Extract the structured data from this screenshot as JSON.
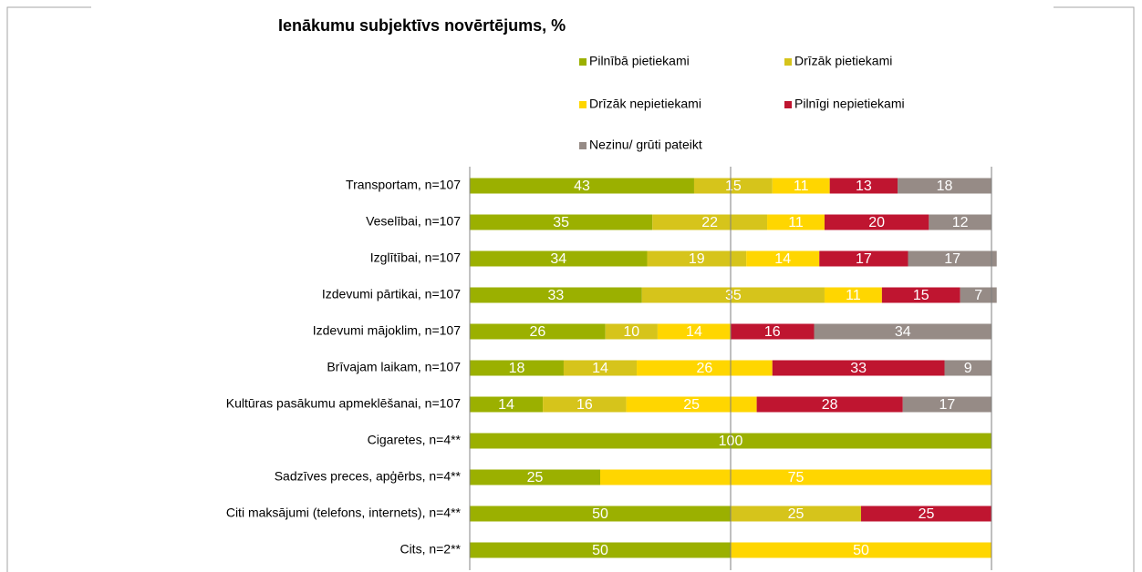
{
  "chart_data": {
    "type": "stacked_bar_horizontal",
    "title": "Ienākumu subjektīvs novērtējums, %",
    "categories": [
      "Transportam, n=107",
      "Veselībai, n=107",
      "Izglītībai, n=107",
      "Izdevumi pārtikai, n=107",
      "Izdevumi mājoklim, n=107",
      "Brīvajam laikam, n=107",
      "Kultūras pasākumu apmeklēšanai, n=107",
      "Cigaretes, n=4**",
      "Sadzīves preces, apģērbs, n=4**",
      "Citi maksājumi (telefons, internets), n=4**",
      "Cits, n=2**"
    ],
    "series": [
      {
        "name": "Pilnībā pietiekami",
        "color": "#9bb000",
        "values": [
          43,
          35,
          34,
          33,
          26,
          18,
          14,
          100,
          25,
          50,
          50
        ]
      },
      {
        "name": "Drīzāk pietiekami",
        "color": "#d6c41b",
        "values": [
          15,
          22,
          19,
          35,
          10,
          14,
          16,
          null,
          null,
          25,
          null
        ]
      },
      {
        "name": "Drīzāk nepietiekami",
        "color": "#ffd600",
        "values": [
          11,
          11,
          14,
          11,
          14,
          26,
          25,
          null,
          75,
          null,
          50
        ]
      },
      {
        "name": "Pilnīgi nepietiekami",
        "color": "#bf1530",
        "values": [
          13,
          20,
          17,
          15,
          16,
          33,
          28,
          null,
          null,
          25,
          null
        ]
      },
      {
        "name": "Nezinu/ grūti pateikt",
        "color": "#968b86",
        "values": [
          18,
          12,
          17,
          7,
          34,
          9,
          17,
          null,
          null,
          null,
          null
        ]
      }
    ],
    "xlim": [
      0,
      100
    ],
    "xticks": [
      0,
      50,
      100
    ],
    "grid": true
  }
}
